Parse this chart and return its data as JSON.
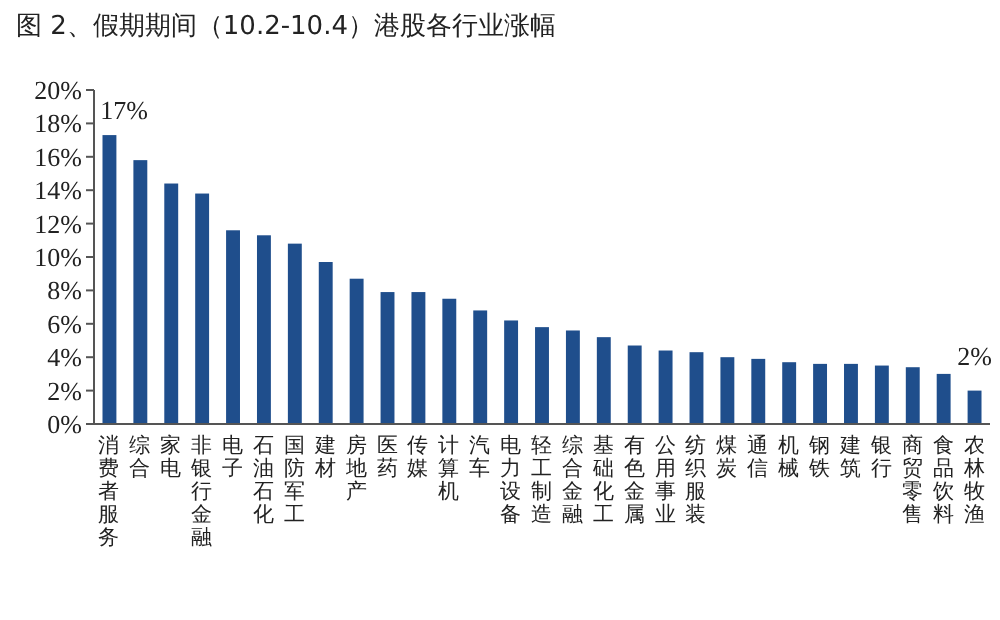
{
  "chart_data": {
    "type": "bar",
    "title": "图 2、假期期间（10.2-10.4）港股各行业涨幅",
    "categories": [
      "消费者服务",
      "综合",
      "家电",
      "非银行金融",
      "电子",
      "石油石化",
      "国防军工",
      "建材",
      "房地产",
      "医药",
      "传媒",
      "计算机",
      "汽车",
      "电力设备",
      "轻工制造",
      "综合金融",
      "基础化工",
      "有色金属",
      "公用事业",
      "纺织服装",
      "煤炭",
      "通信",
      "机械",
      "钢铁",
      "建筑",
      "银行",
      "商贸零售",
      "食品饮料",
      "农林牧渔"
    ],
    "values": [
      17.3,
      15.8,
      14.4,
      13.8,
      11.6,
      11.3,
      10.8,
      9.7,
      8.7,
      7.9,
      7.9,
      7.5,
      6.8,
      6.2,
      5.8,
      5.6,
      5.2,
      4.7,
      4.4,
      4.3,
      4.0,
      3.9,
      3.7,
      3.6,
      3.6,
      3.5,
      3.4,
      3.0,
      2.0
    ],
    "color": "#1f4e8c",
    "ylim": [
      0,
      20
    ],
    "yticks": [
      {
        "value": 0,
        "label": "0%"
      },
      {
        "value": 2,
        "label": "2%"
      },
      {
        "value": 4,
        "label": "4%"
      },
      {
        "value": 6,
        "label": "6%"
      },
      {
        "value": 8,
        "label": "8%"
      },
      {
        "value": 10,
        "label": "10%"
      },
      {
        "value": 12,
        "label": "12%"
      },
      {
        "value": 14,
        "label": "14%"
      },
      {
        "value": 16,
        "label": "16%"
      },
      {
        "value": 18,
        "label": "18%"
      },
      {
        "value": 20,
        "label": "20%"
      }
    ],
    "annotations": [
      {
        "text": "17%",
        "x": "消费者服务",
        "y": 17.3
      },
      {
        "text": "2%",
        "x": "农林牧渔",
        "y": 2.0
      }
    ],
    "grid": false
  }
}
